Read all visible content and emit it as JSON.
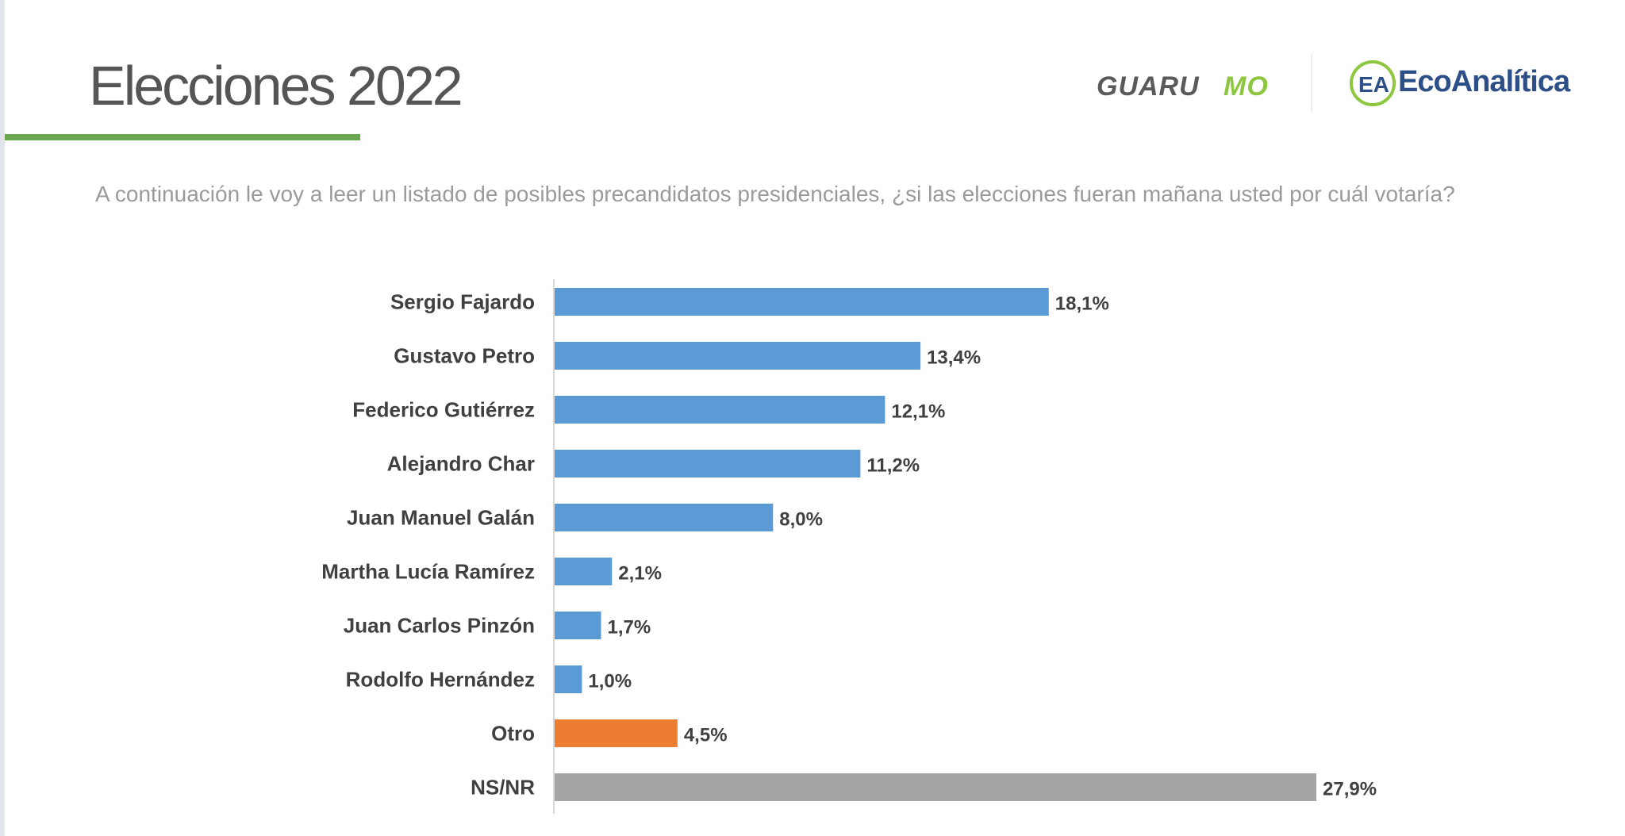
{
  "header": {
    "title": "Elecciones 2022",
    "logos": {
      "guarumo": {
        "text_a": "GUARU",
        "text_b": "MO"
      },
      "ecoanalitica": {
        "text": "EcoAnalítica",
        "mark": "EA"
      }
    }
  },
  "question": "A continuación le voy a leer un listado de posibles precandidatos presidenciales, ¿si las elecciones fueran mañana usted por cuál votaría?",
  "colors": {
    "accent_green": "#6aa84f",
    "bar_blue": "#5b9bd5",
    "bar_orange": "#ed7d31",
    "bar_gray": "#a5a5a5",
    "label_dark": "#404040",
    "logo_blue": "#2b4f86",
    "logo_green": "#8dc63f"
  },
  "chart_data": {
    "type": "bar",
    "orientation": "horizontal",
    "title": "",
    "xlabel": "",
    "ylabel": "",
    "xlim": [
      0,
      27.9
    ],
    "grid": false,
    "legend": "none",
    "categories": [
      "Sergio Fajardo",
      "Gustavo Petro",
      "Federico Gutiérrez",
      "Alejandro Char",
      "Juan Manuel Galán",
      "Martha Lucía Ramírez",
      "Juan Carlos Pinzón",
      "Rodolfo Hernández",
      "Otro",
      "NS/NR"
    ],
    "values": [
      18.1,
      13.4,
      12.1,
      11.2,
      8.0,
      2.1,
      1.7,
      1.0,
      4.5,
      27.9
    ],
    "value_labels": [
      "18,1%",
      "13,4%",
      "12,1%",
      "11,2%",
      "8,0%",
      "2,1%",
      "1,7%",
      "1,0%",
      "4,5%",
      "27,9%"
    ],
    "bar_colors": [
      "#5b9bd5",
      "#5b9bd5",
      "#5b9bd5",
      "#5b9bd5",
      "#5b9bd5",
      "#5b9bd5",
      "#5b9bd5",
      "#5b9bd5",
      "#ed7d31",
      "#a5a5a5"
    ]
  }
}
